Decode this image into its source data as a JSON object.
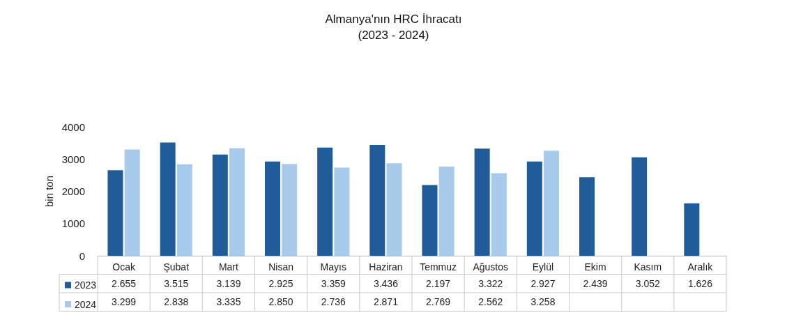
{
  "chart_data": {
    "type": "bar",
    "title": "Almanya'nın HRC İhracatı",
    "subtitle": "(2023 - 2024)",
    "ylabel": "bin ton",
    "categories": [
      "Ocak",
      "Şubat",
      "Mart",
      "Nisan",
      "Mayıs",
      "Haziran",
      "Temmuz",
      "Ağustos",
      "Eylül",
      "Ekim",
      "Kasım",
      "Aralık"
    ],
    "series": [
      {
        "name": "2023",
        "color": "#1f5c99",
        "values": [
          2655,
          3515,
          3139,
          2925,
          3359,
          3436,
          2197,
          3322,
          2927,
          2439,
          3052,
          1626
        ],
        "value_labels": [
          "2.655",
          "3.515",
          "3.139",
          "2.925",
          "3.359",
          "3.436",
          "2.197",
          "3.322",
          "2.927",
          "2.439",
          "3.052",
          "1.626"
        ]
      },
      {
        "name": "2024",
        "color": "#a9cbeb",
        "values": [
          3299,
          2838,
          3335,
          2850,
          2736,
          2871,
          2769,
          2562,
          3258,
          null,
          null,
          null
        ],
        "value_labels": [
          "3.299",
          "2.838",
          "3.335",
          "2.850",
          "2.736",
          "2.871",
          "2.769",
          "2.562",
          "3.258",
          null,
          null,
          null
        ]
      }
    ],
    "ylim": [
      0,
      4000
    ],
    "yticks": [
      0,
      1000,
      2000,
      3000,
      4000
    ],
    "grid": false,
    "legend": "bottom left"
  }
}
